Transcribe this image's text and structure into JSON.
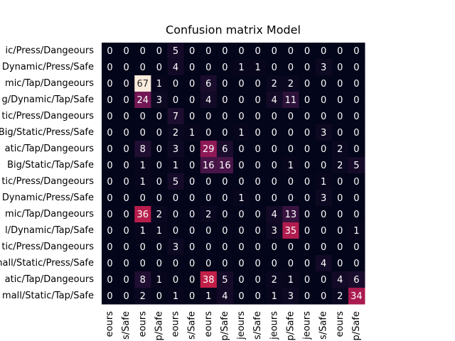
{
  "chart_data": {
    "type": "heatmap",
    "title": "Confusion matrix Model",
    "colormap": "rocket",
    "zlim": [
      0,
      67
    ],
    "rows": [
      "ic/Press/Dangeours",
      "Dynamic/Press/Safe",
      "mic/Tap/Dangeours",
      "g/Dynamic/Tap/Safe",
      "tic/Press/Dangeours",
      "Big/Static/Press/Safe",
      "atic/Tap/Dangeours",
      "Big/Static/Tap/Safe",
      "tic/Press/Dangeours",
      "Dynamic/Press/Safe",
      "mic/Tap/Dangeours",
      "l/Dynamic/Tap/Safe",
      "tic/Press/Dangeours",
      "mall/Static/Press/Safe",
      "atic/Tap/Dangeours",
      "mall/Static/Tap/Safe"
    ],
    "columns": [
      "eours",
      "s/Safe",
      "eours",
      "p/Safe",
      "eours",
      "s/Safe",
      "eours",
      "p/Safe",
      "jeours",
      "s/Safe",
      "jeours",
      "p/Safe",
      "jeours",
      "s/Safe",
      "eours",
      "p/Safe"
    ],
    "values": [
      [
        0,
        0,
        0,
        0,
        5,
        0,
        0,
        0,
        0,
        0,
        0,
        0,
        0,
        0,
        0,
        0
      ],
      [
        0,
        0,
        0,
        0,
        4,
        0,
        0,
        0,
        1,
        1,
        0,
        0,
        0,
        3,
        0,
        0
      ],
      [
        0,
        0,
        67,
        1,
        0,
        0,
        6,
        0,
        0,
        0,
        2,
        2,
        0,
        0,
        0,
        0
      ],
      [
        0,
        0,
        24,
        3,
        0,
        0,
        4,
        0,
        0,
        0,
        4,
        11,
        0,
        0,
        0,
        0
      ],
      [
        0,
        0,
        0,
        0,
        7,
        0,
        0,
        0,
        0,
        0,
        0,
        0,
        0,
        0,
        0,
        0
      ],
      [
        0,
        0,
        0,
        0,
        2,
        1,
        0,
        0,
        1,
        0,
        0,
        0,
        0,
        3,
        0,
        0
      ],
      [
        0,
        0,
        8,
        0,
        3,
        0,
        29,
        6,
        0,
        0,
        0,
        0,
        0,
        0,
        2,
        0
      ],
      [
        0,
        0,
        1,
        0,
        1,
        0,
        16,
        16,
        0,
        0,
        0,
        1,
        0,
        0,
        2,
        5
      ],
      [
        0,
        0,
        1,
        0,
        5,
        0,
        0,
        0,
        0,
        0,
        0,
        0,
        0,
        1,
        0,
        0
      ],
      [
        0,
        0,
        0,
        0,
        0,
        0,
        0,
        0,
        1,
        0,
        0,
        0,
        0,
        3,
        0,
        0
      ],
      [
        0,
        0,
        36,
        2,
        0,
        0,
        2,
        0,
        0,
        0,
        4,
        13,
        0,
        0,
        0,
        0
      ],
      [
        0,
        0,
        1,
        1,
        0,
        0,
        0,
        0,
        0,
        0,
        3,
        35,
        0,
        0,
        0,
        1
      ],
      [
        0,
        0,
        0,
        0,
        3,
        0,
        0,
        0,
        0,
        0,
        0,
        0,
        0,
        0,
        0,
        0
      ],
      [
        0,
        0,
        0,
        0,
        0,
        0,
        0,
        0,
        0,
        0,
        0,
        0,
        0,
        4,
        0,
        0
      ],
      [
        0,
        0,
        8,
        1,
        0,
        0,
        38,
        5,
        0,
        0,
        2,
        1,
        0,
        0,
        4,
        6
      ],
      [
        0,
        0,
        2,
        0,
        1,
        0,
        1,
        4,
        0,
        0,
        1,
        3,
        0,
        0,
        2,
        34
      ]
    ]
  }
}
